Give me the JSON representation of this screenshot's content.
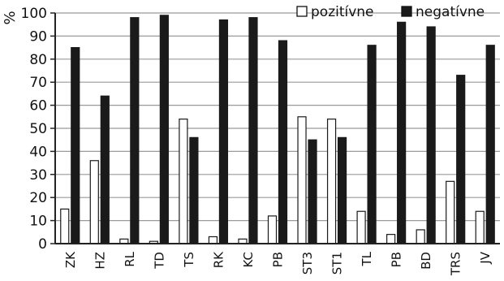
{
  "chart_data": {
    "type": "bar",
    "title": "",
    "xlabel": "",
    "ylabel": "%",
    "ylim": [
      0,
      100
    ],
    "yticks": [
      0,
      10,
      20,
      30,
      40,
      50,
      60,
      70,
      80,
      90,
      100
    ],
    "grid": true,
    "legend_position": "top-right",
    "categories": [
      "ZK",
      "HZ",
      "RL",
      "TD",
      "TS",
      "RK",
      "KC",
      "PB",
      "ST3",
      "ST1",
      "TL",
      "PB",
      "BD",
      "TRS",
      "JV"
    ],
    "series": [
      {
        "name": "pozitívne",
        "color": "#ffffff",
        "values": [
          15,
          36,
          2,
          1,
          54,
          3,
          2,
          12,
          55,
          54,
          14,
          4,
          6,
          27,
          14
        ]
      },
      {
        "name": "negatívne",
        "color": "#1a1a1a",
        "values": [
          85,
          64,
          98,
          99,
          46,
          97,
          98,
          88,
          45,
          46,
          86,
          96,
          94,
          73,
          86
        ]
      }
    ]
  }
}
